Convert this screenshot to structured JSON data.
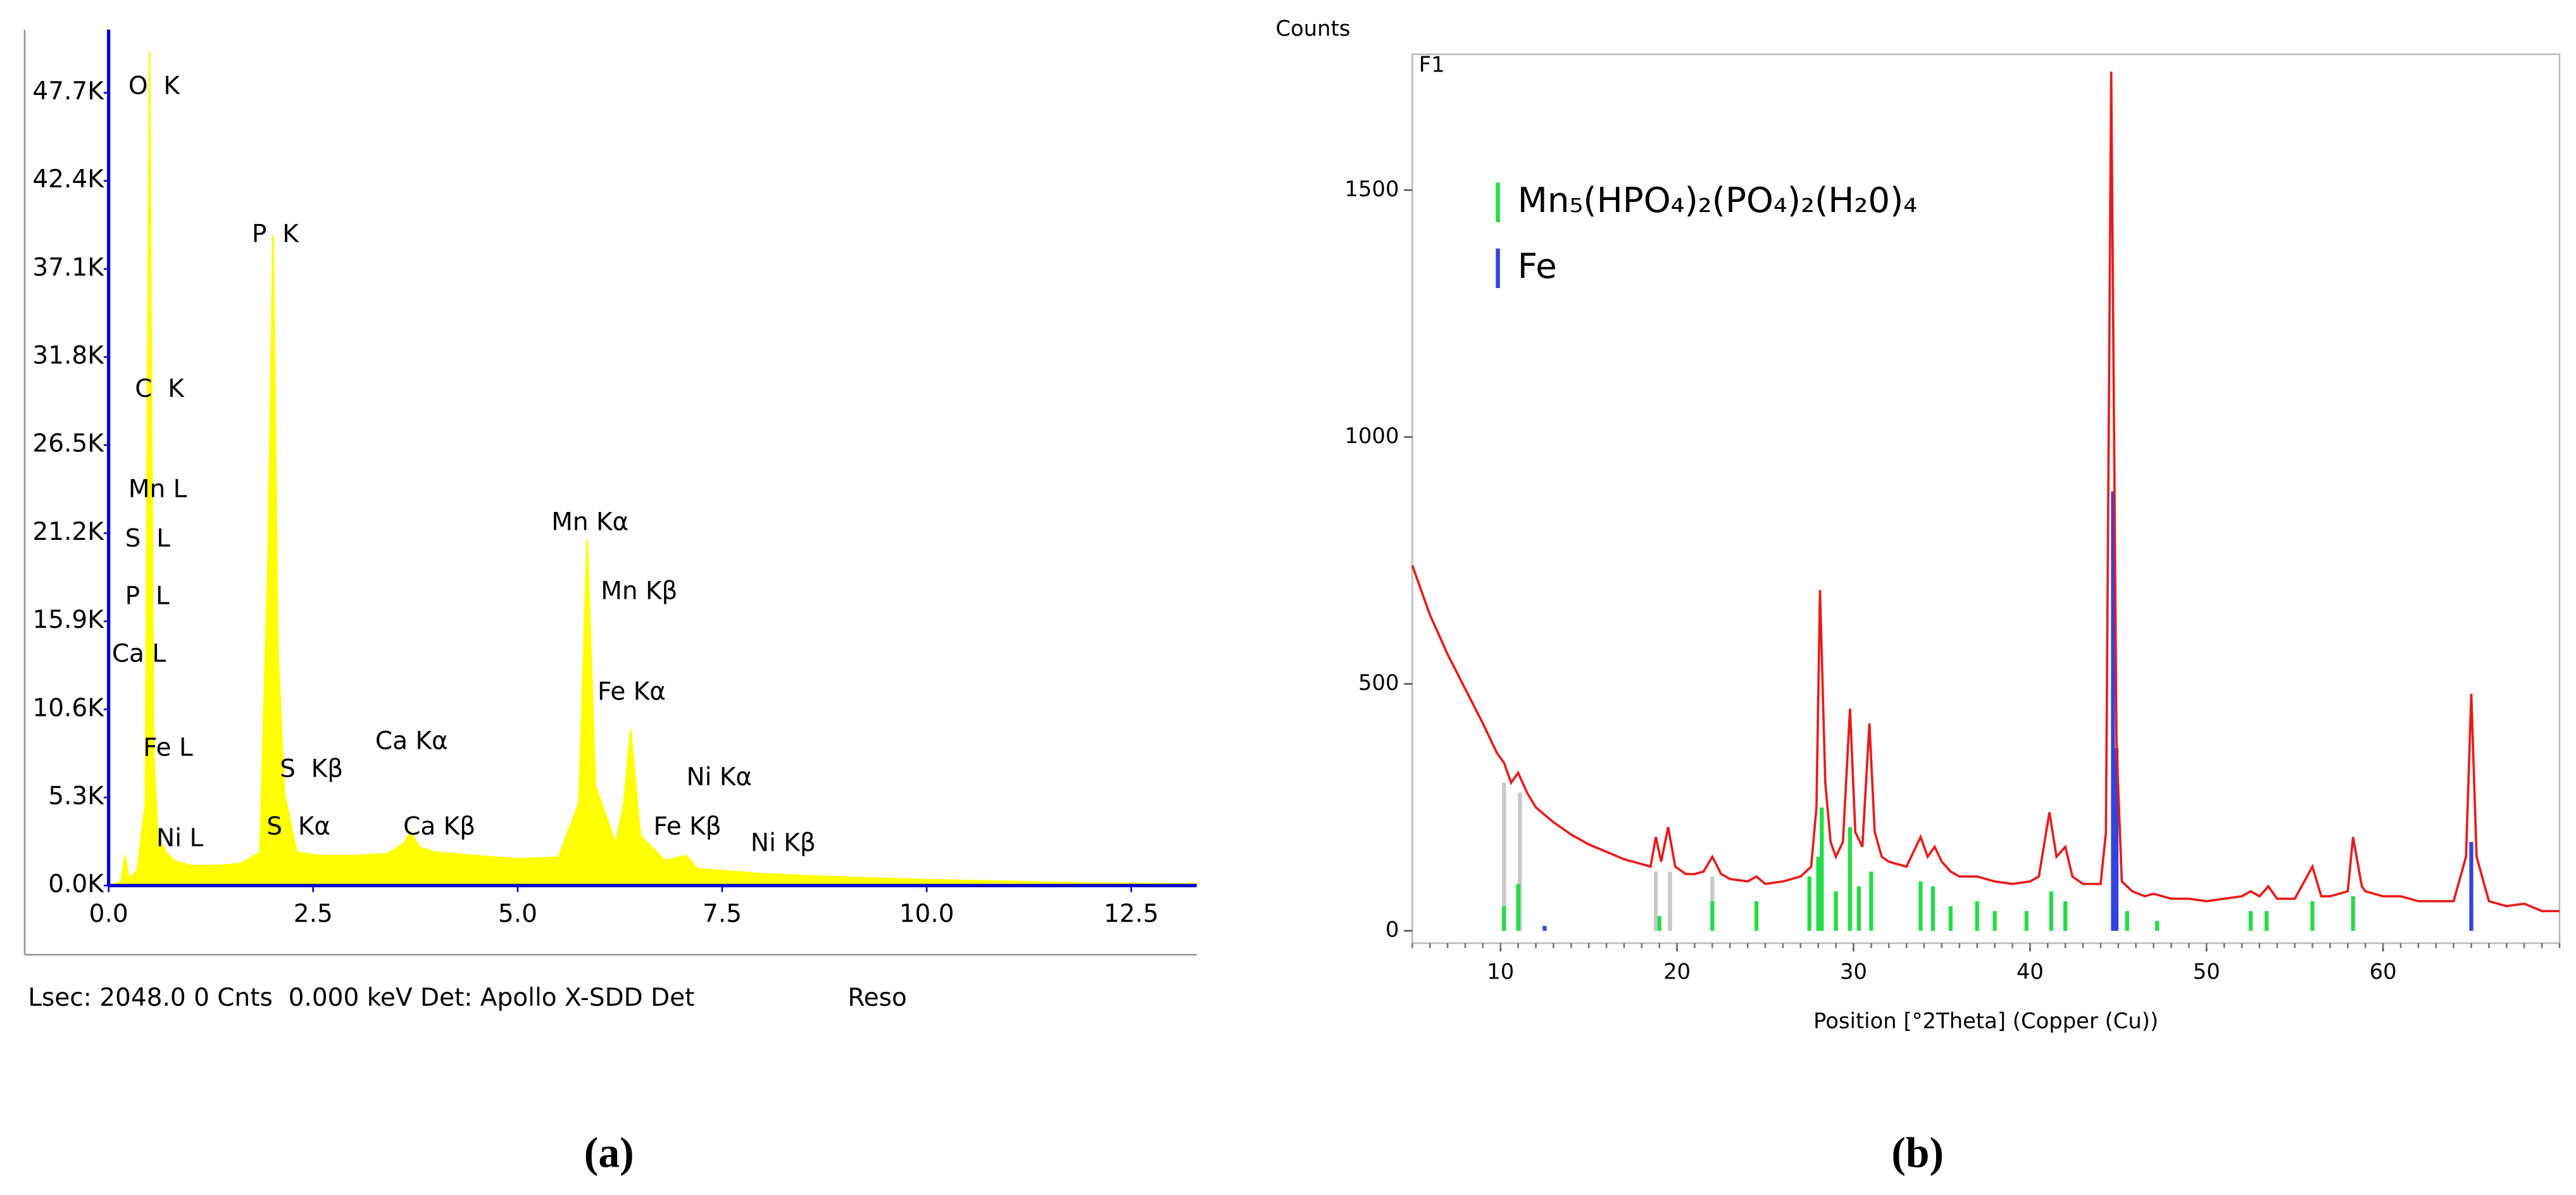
{
  "chart_data": [
    {
      "type": "area",
      "color": "#ffff00",
      "axis_color": "#0000cc",
      "x": [
        0,
        0.15,
        0.2,
        0.25,
        0.35,
        0.45,
        0.5,
        0.55,
        0.6,
        0.7,
        0.8,
        1.0,
        1.3,
        1.6,
        1.85,
        1.95,
        2.01,
        2.07,
        2.15,
        2.3,
        2.6,
        3.0,
        3.4,
        3.6,
        3.69,
        3.8,
        4.0,
        4.5,
        5.0,
        5.5,
        5.75,
        5.85,
        5.95,
        6.2,
        6.3,
        6.38,
        6.5,
        6.8,
        7.06,
        7.2,
        7.5,
        8,
        9,
        10,
        11,
        12,
        13.3
      ],
      "values": [
        0,
        200,
        1800,
        400,
        900,
        5000,
        50200,
        8000,
        3000,
        2000,
        1500,
        1200,
        1200,
        1300,
        2000,
        20000,
        39100,
        14000,
        5500,
        2000,
        1800,
        1800,
        1900,
        2500,
        3200,
        2300,
        2000,
        1800,
        1600,
        1700,
        5000,
        20800,
        6000,
        2500,
        5000,
        9400,
        3000,
        1500,
        1800,
        1000,
        900,
        700,
        500,
        350,
        250,
        150,
        100
      ],
      "xlim": [
        0,
        13.3
      ],
      "ylim": [
        0,
        51500
      ],
      "xticks": [
        {
          "value": 0,
          "label": "0.0"
        },
        2.5,
        {
          "value": 5,
          "label": "5.0"
        },
        7.5,
        {
          "value": 10,
          "label": "10.0"
        },
        12.5
      ],
      "yticks": [
        {
          "value": 0,
          "label": "0.0K"
        },
        {
          "value": 5300,
          "label": "5.3K"
        },
        {
          "value": 10600,
          "label": "10.6K"
        },
        {
          "value": 15900,
          "label": "15.9K"
        },
        {
          "value": 21200,
          "label": "21.2K"
        },
        {
          "value": 26500,
          "label": "26.5K"
        },
        {
          "value": 31800,
          "label": "31.8K"
        },
        {
          "value": 37100,
          "label": "37.1K"
        },
        {
          "value": 42400,
          "label": "42.4K"
        },
        {
          "value": 47700,
          "label": "47.7K"
        }
      ],
      "annotations": [
        "O  K",
        "P  K",
        "C  K",
        "Mn L",
        "S  L",
        "P  L",
        "Ca L",
        "Fe L",
        "Ni L",
        "S  Kβ",
        "S  Kα",
        "Ca Kα",
        "Ca Kβ",
        "Mn Kα",
        "Mn Kβ",
        "Fe Kα",
        "Ni Kα",
        "Fe Kβ",
        "Ni Kβ"
      ],
      "footer": [
        "Lsec: 2048.0 0 Cnts  0.000 keV Det: Apollo X-SDD Det",
        "Reso"
      ],
      "caption": "(a)"
    },
    {
      "type": "line",
      "ylabel": "Counts",
      "title": "F1",
      "xlabel": "Position [°2Theta] (Copper (Cu))",
      "xlim": [
        5,
        70
      ],
      "ylim": [
        -25,
        1775
      ],
      "xticks": [
        10,
        20,
        30,
        40,
        50,
        60
      ],
      "yticks": [
        0,
        500,
        1000,
        1500
      ],
      "series": [
        {
          "mark": "line",
          "color": "#e81b1b",
          "x": [
            5,
            6,
            7,
            8,
            9,
            9.8,
            10.2,
            10.6,
            11,
            11.5,
            12,
            13,
            14,
            15,
            16,
            17,
            18,
            18.5,
            18.8,
            19.1,
            19.5,
            19.9,
            20.5,
            21,
            21.5,
            22,
            22.5,
            23,
            24,
            24.5,
            25,
            26,
            27,
            27.6,
            27.9,
            28.1,
            28.4,
            28.7,
            29,
            29.4,
            29.8,
            30.1,
            30.5,
            30.9,
            31.2,
            31.6,
            32,
            33,
            33.8,
            34.2,
            34.6,
            35,
            35.5,
            36,
            37,
            38,
            39,
            40,
            40.5,
            41.1,
            41.5,
            42,
            42.4,
            43,
            44,
            44.3,
            44.6,
            44.9,
            45.2,
            45.8,
            46.5,
            47,
            48,
            49,
            50,
            51,
            52,
            52.5,
            53,
            53.5,
            54,
            55,
            56,
            56.5,
            57,
            58,
            58.3,
            58.8,
            59,
            60,
            61,
            62,
            63,
            64,
            64.7,
            65,
            65.3,
            66,
            67,
            68,
            69,
            70
          ],
          "values": [
            740,
            640,
            560,
            490,
            420,
            360,
            340,
            300,
            320,
            280,
            250,
            220,
            195,
            175,
            160,
            145,
            135,
            130,
            190,
            140,
            210,
            130,
            115,
            115,
            120,
            150,
            115,
            105,
            100,
            110,
            95,
            100,
            110,
            130,
            250,
            690,
            300,
            180,
            150,
            180,
            450,
            200,
            170,
            420,
            200,
            150,
            140,
            130,
            190,
            150,
            170,
            140,
            120,
            110,
            110,
            100,
            95,
            100,
            110,
            240,
            150,
            170,
            110,
            95,
            95,
            200,
            1740,
            380,
            100,
            80,
            70,
            75,
            65,
            65,
            60,
            65,
            70,
            80,
            70,
            90,
            65,
            65,
            130,
            70,
            70,
            80,
            190,
            90,
            80,
            70,
            70,
            60,
            60,
            60,
            150,
            480,
            150,
            60,
            50,
            55,
            40,
            40
          ]
        },
        {
          "mark": "stick",
          "color": "#c8c8c8",
          "x": [
            10.2,
            11.1,
            18.8,
            19.6,
            22
          ],
          "values": [
            300,
            280,
            120,
            120,
            110
          ]
        },
        {
          "mark": "stick",
          "name": "Mn₅(HPO₄)₂(PO₄)₂(H₂0)₄",
          "color": "#22dd44",
          "x": [
            10.2,
            11,
            19,
            22,
            24.5,
            27.5,
            28,
            28.2,
            29,
            29.8,
            30.3,
            31,
            33.8,
            34.5,
            35.5,
            37,
            38,
            39.8,
            41.2,
            42,
            45.5,
            47.2,
            52.5,
            53.4,
            56,
            58.3,
            65
          ],
          "values": [
            50,
            95,
            30,
            60,
            60,
            110,
            150,
            250,
            80,
            210,
            90,
            120,
            100,
            90,
            50,
            60,
            40,
            40,
            80,
            60,
            40,
            20,
            40,
            40,
            60,
            70,
            40
          ]
        },
        {
          "mark": "stick",
          "name": "Fe",
          "color": "#3344dd",
          "x": [
            12.5,
            44.7,
            44.9,
            65
          ],
          "values": [
            10,
            890,
            370,
            180
          ]
        }
      ],
      "caption": "(b)"
    }
  ]
}
